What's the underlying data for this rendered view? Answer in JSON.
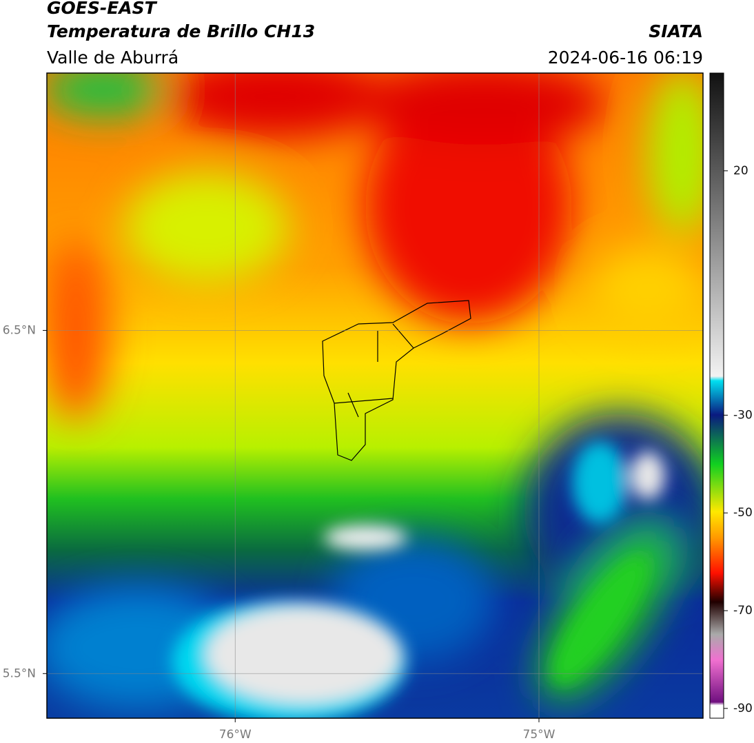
{
  "header": {
    "title": "GOES-EAST",
    "subtitle": "Temperatura de Brillo CH13",
    "region": "Valle de Aburrá",
    "source": "SIATA",
    "datetime": "2024-06-16 06:19"
  },
  "map": {
    "xlim": [
      -76.62,
      -74.46
    ],
    "ylim": [
      5.37,
      7.25
    ],
    "xticks": [
      {
        "value": -76,
        "label": "76°W"
      },
      {
        "value": -75,
        "label": "75°W"
      }
    ],
    "yticks": [
      {
        "value": 5.5,
        "label": "5.5°N"
      },
      {
        "value": 6.5,
        "label": "6.5°N"
      }
    ],
    "grid": true
  },
  "colorbar": {
    "lim": [
      -92,
      40
    ],
    "ticks": [
      -90,
      -70,
      -50,
      -30,
      20
    ]
  }
}
